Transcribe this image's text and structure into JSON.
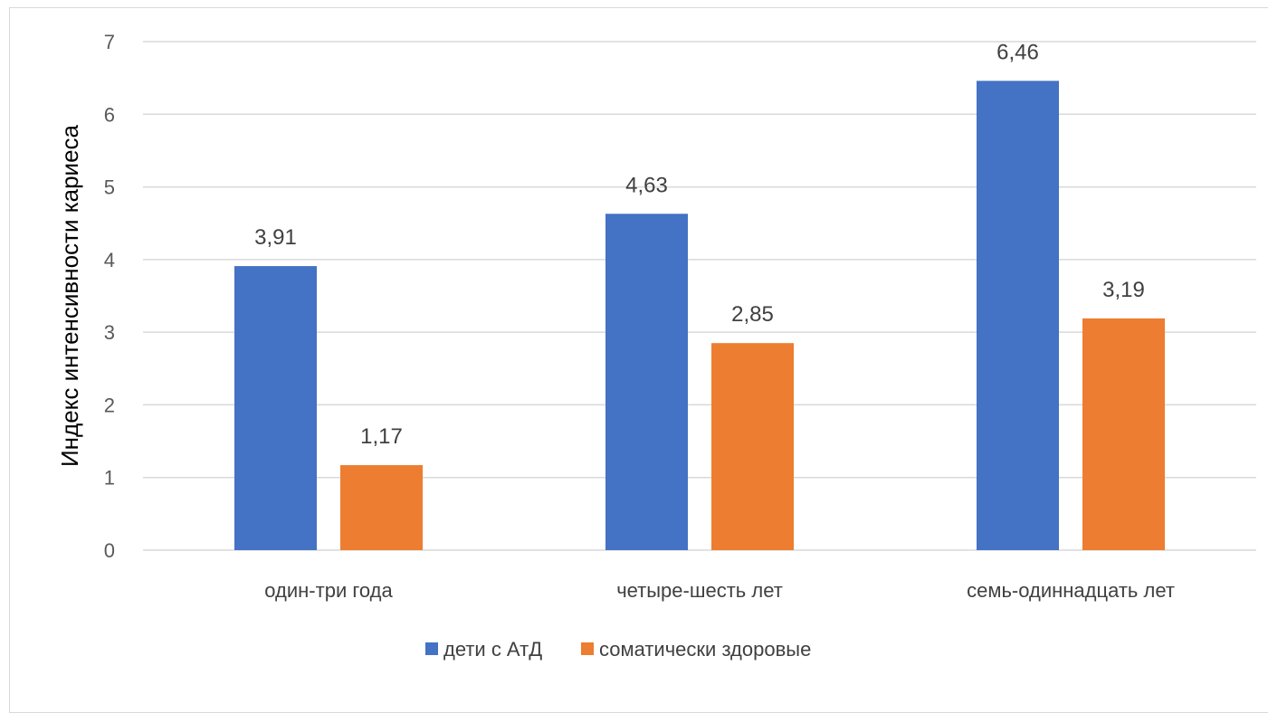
{
  "chart_data": {
    "type": "bar",
    "categories": [
      "один-три года",
      "четыре-шесть лет",
      "семь-одиннадцать лет"
    ],
    "series": [
      {
        "name": "дети с АтД",
        "values": [
          3.91,
          4.63,
          6.46
        ],
        "labels": [
          "3,91",
          "4,63",
          "6,46"
        ],
        "color": "#4472C4"
      },
      {
        "name": "соматически здоровые",
        "values": [
          1.17,
          2.85,
          3.19
        ],
        "labels": [
          "1,17",
          "2,85",
          "3,19"
        ],
        "color": "#ED7D31"
      }
    ],
    "title": "",
    "xlabel": "",
    "ylabel": "Индекс интенсивности кариеса",
    "ylim": [
      0,
      7
    ],
    "yticks": [
      0,
      1,
      2,
      3,
      4,
      5,
      6,
      7
    ],
    "grid": true,
    "gridColor": "#d9d9d9",
    "legend": "bottom"
  }
}
